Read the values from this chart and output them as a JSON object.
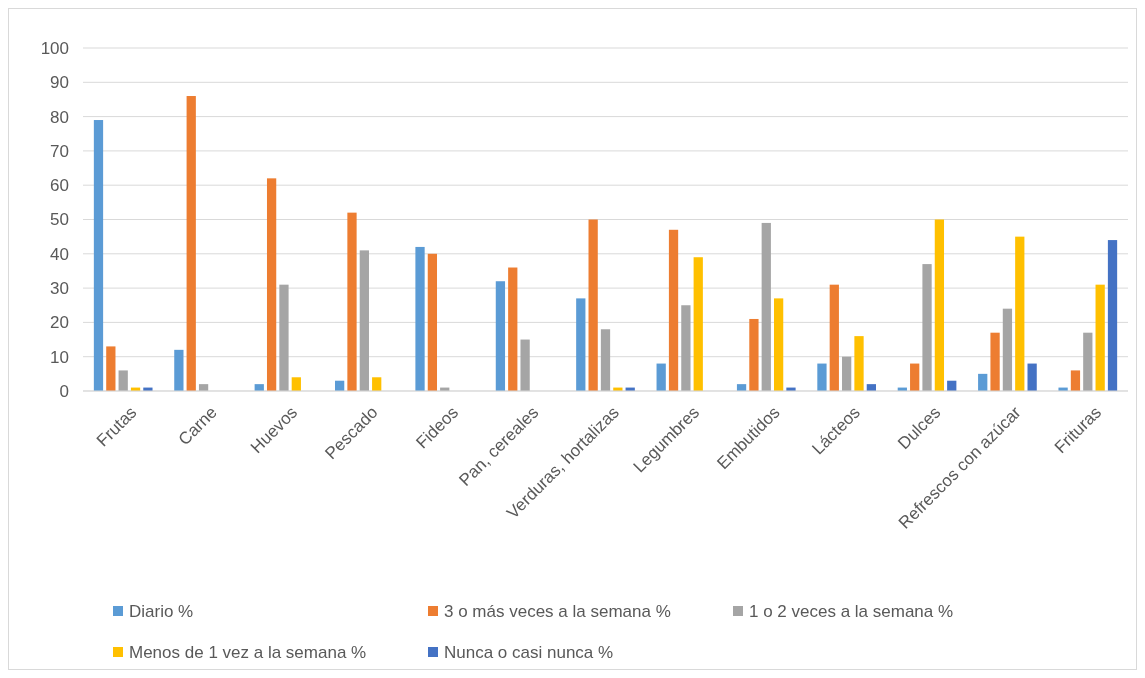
{
  "chart_data": {
    "type": "bar",
    "categories": [
      "Frutas",
      "Carne",
      "Huevos",
      "Pescado",
      "Fideos",
      "Pan, cereales",
      "Verduras, hortalizas",
      "Legumbres",
      "Embutidos",
      "Lácteos",
      "Dulces",
      "Refrescos con azúcar",
      "Frituras"
    ],
    "series": [
      {
        "name": "Diario %",
        "color": "#5b9bd5",
        "values": [
          79,
          12,
          2,
          3,
          42,
          32,
          27,
          8,
          2,
          8,
          1,
          5,
          1
        ]
      },
      {
        "name": "3 o más veces a la semana %",
        "color": "#ed7d31",
        "values": [
          13,
          86,
          62,
          52,
          40,
          36,
          50,
          47,
          21,
          31,
          8,
          17,
          6
        ]
      },
      {
        "name": "1 o 2 veces a la semana %",
        "color": "#a5a5a5",
        "values": [
          6,
          2,
          31,
          41,
          1,
          15,
          18,
          25,
          49,
          10,
          37,
          24,
          17
        ]
      },
      {
        "name": "Menos de 1 vez a la semana %",
        "color": "#ffc000",
        "values": [
          1,
          0,
          4,
          4,
          0,
          0,
          1,
          39,
          27,
          16,
          50,
          45,
          31
        ]
      },
      {
        "name": "Nunca o casi nunca %",
        "color": "#4472c4",
        "values": [
          1,
          0,
          0,
          0,
          0,
          0,
          1,
          0,
          1,
          2,
          3,
          8,
          44
        ]
      }
    ],
    "ylim": [
      0,
      100
    ],
    "yticks": [
      0,
      10,
      20,
      30,
      40,
      50,
      60,
      70,
      80,
      90,
      100
    ],
    "grid": "y",
    "legend": "bottom"
  }
}
